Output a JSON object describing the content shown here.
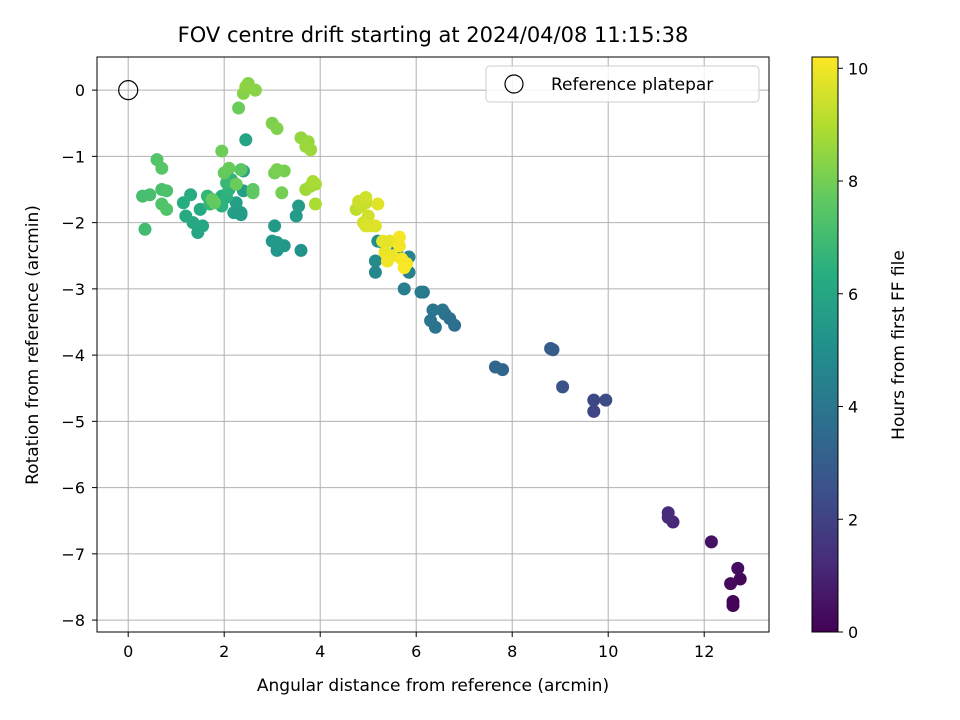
{
  "chart_data": {
    "type": "scatter",
    "title": "FOV centre drift starting at 2024/04/08 11:15:38",
    "xlabel": "Angular distance from reference (arcmin)",
    "ylabel": "Rotation from reference (arcmin)",
    "colorbar_label": "Hours from first FF file",
    "xlim": [
      -0.65,
      13.35
    ],
    "ylim": [
      -8.18,
      0.5
    ],
    "xticks": [
      0,
      2,
      4,
      6,
      8,
      10,
      12
    ],
    "yticks": [
      0,
      -1,
      -2,
      -3,
      -4,
      -5,
      -6,
      -7,
      -8
    ],
    "colorbar_range": [
      0,
      10.2
    ],
    "colorbar_ticks": [
      0,
      2,
      4,
      6,
      8,
      10
    ],
    "colormap": "viridis",
    "grid": true,
    "legend": {
      "placement": "top-right",
      "entries": [
        "Reference platepar"
      ]
    },
    "reference_point": {
      "name": "Reference platepar",
      "x": 0,
      "y": 0
    },
    "series": [
      {
        "points": [
          {
            "x": 12.75,
            "y": -7.38,
            "t": 0.2
          },
          {
            "x": 12.6,
            "y": -7.72,
            "t": 0.1
          },
          {
            "x": 12.6,
            "y": -7.78,
            "t": 0.1
          },
          {
            "x": 12.55,
            "y": -7.45,
            "t": 0.25
          },
          {
            "x": 12.7,
            "y": -7.22,
            "t": 0.35
          },
          {
            "x": 12.15,
            "y": -6.82,
            "t": 0.45
          },
          {
            "x": 11.35,
            "y": -6.52,
            "t": 1.1
          },
          {
            "x": 11.25,
            "y": -6.38,
            "t": 1.2
          },
          {
            "x": 11.25,
            "y": -6.45,
            "t": 1.25
          },
          {
            "x": 9.7,
            "y": -4.85,
            "t": 2.1
          },
          {
            "x": 9.7,
            "y": -4.68,
            "t": 2.2
          },
          {
            "x": 9.95,
            "y": -4.68,
            "t": 2.3
          },
          {
            "x": 9.05,
            "y": -4.48,
            "t": 2.5
          },
          {
            "x": 8.8,
            "y": -3.9,
            "t": 2.9
          },
          {
            "x": 8.85,
            "y": -3.92,
            "t": 2.95
          },
          {
            "x": 7.8,
            "y": -4.22,
            "t": 3.3
          },
          {
            "x": 7.65,
            "y": -4.18,
            "t": 3.4
          },
          {
            "x": 6.8,
            "y": -3.55,
            "t": 3.7
          },
          {
            "x": 6.7,
            "y": -3.45,
            "t": 3.75
          },
          {
            "x": 6.6,
            "y": -3.38,
            "t": 3.8
          },
          {
            "x": 6.55,
            "y": -3.32,
            "t": 3.85
          },
          {
            "x": 6.4,
            "y": -3.58,
            "t": 3.9
          },
          {
            "x": 6.3,
            "y": -3.48,
            "t": 3.95
          },
          {
            "x": 6.35,
            "y": -3.32,
            "t": 4.0
          },
          {
            "x": 6.15,
            "y": -3.05,
            "t": 4.1
          },
          {
            "x": 6.1,
            "y": -3.05,
            "t": 4.15
          },
          {
            "x": 5.75,
            "y": -3.0,
            "t": 4.3
          },
          {
            "x": 5.85,
            "y": -2.75,
            "t": 4.45
          },
          {
            "x": 5.85,
            "y": -2.52,
            "t": 4.55
          },
          {
            "x": 5.6,
            "y": -2.42,
            "t": 4.65
          },
          {
            "x": 5.15,
            "y": -2.75,
            "t": 4.7
          },
          {
            "x": 5.15,
            "y": -2.58,
            "t": 4.8
          },
          {
            "x": 5.2,
            "y": -2.28,
            "t": 4.9
          },
          {
            "x": 5.3,
            "y": -2.3,
            "t": 5.0
          },
          {
            "x": 3.6,
            "y": -2.42,
            "t": 5.2
          },
          {
            "x": 3.1,
            "y": -2.42,
            "t": 5.3
          },
          {
            "x": 3.25,
            "y": -2.35,
            "t": 5.35
          },
          {
            "x": 3.0,
            "y": -2.28,
            "t": 5.4
          },
          {
            "x": 3.1,
            "y": -2.3,
            "t": 5.45
          },
          {
            "x": 3.05,
            "y": -2.05,
            "t": 5.5
          },
          {
            "x": 3.5,
            "y": -1.9,
            "t": 5.55
          },
          {
            "x": 3.55,
            "y": -1.75,
            "t": 5.6
          },
          {
            "x": 2.35,
            "y": -1.88,
            "t": 5.6
          },
          {
            "x": 2.2,
            "y": -1.85,
            "t": 5.65
          },
          {
            "x": 2.35,
            "y": -1.85,
            "t": 5.65
          },
          {
            "x": 2.4,
            "y": -1.52,
            "t": 5.7
          },
          {
            "x": 2.25,
            "y": -1.7,
            "t": 5.75
          },
          {
            "x": 2.4,
            "y": -1.22,
            "t": 5.8
          },
          {
            "x": 2.45,
            "y": -0.75,
            "t": 5.9
          },
          {
            "x": 1.45,
            "y": -2.15,
            "t": 6.0
          },
          {
            "x": 1.55,
            "y": -2.05,
            "t": 6.05
          },
          {
            "x": 1.35,
            "y": -2.0,
            "t": 6.1
          },
          {
            "x": 1.5,
            "y": -1.8,
            "t": 6.15
          },
          {
            "x": 1.2,
            "y": -1.9,
            "t": 6.2
          },
          {
            "x": 1.3,
            "y": -1.58,
            "t": 6.3
          },
          {
            "x": 1.15,
            "y": -1.7,
            "t": 6.35
          },
          {
            "x": 1.95,
            "y": -1.6,
            "t": 6.4
          },
          {
            "x": 2.05,
            "y": -1.62,
            "t": 6.45
          },
          {
            "x": 1.95,
            "y": -1.75,
            "t": 6.5
          },
          {
            "x": 2.1,
            "y": -1.5,
            "t": 6.55
          },
          {
            "x": 2.15,
            "y": -1.35,
            "t": 6.6
          },
          {
            "x": 1.65,
            "y": -1.6,
            "t": 6.7
          },
          {
            "x": 1.7,
            "y": -1.72,
            "t": 6.75
          },
          {
            "x": 2.05,
            "y": -1.4,
            "t": 6.8
          },
          {
            "x": 0.35,
            "y": -2.1,
            "t": 7.0
          },
          {
            "x": 0.3,
            "y": -1.6,
            "t": 7.1
          },
          {
            "x": 0.45,
            "y": -1.58,
            "t": 7.15
          },
          {
            "x": 0.7,
            "y": -1.5,
            "t": 7.2
          },
          {
            "x": 0.8,
            "y": -1.52,
            "t": 7.25
          },
          {
            "x": 0.7,
            "y": -1.72,
            "t": 7.3
          },
          {
            "x": 0.8,
            "y": -1.8,
            "t": 7.35
          },
          {
            "x": 0.6,
            "y": -1.05,
            "t": 7.4
          },
          {
            "x": 0.7,
            "y": -1.18,
            "t": 7.45
          },
          {
            "x": 2.35,
            "y": -1.2,
            "t": 7.55
          },
          {
            "x": 2.6,
            "y": -1.5,
            "t": 7.6
          },
          {
            "x": 2.6,
            "y": -1.55,
            "t": 7.65
          },
          {
            "x": 1.75,
            "y": -1.65,
            "t": 7.7
          },
          {
            "x": 1.8,
            "y": -1.7,
            "t": 7.72
          },
          {
            "x": 2.0,
            "y": -1.25,
            "t": 7.75
          },
          {
            "x": 2.1,
            "y": -1.18,
            "t": 7.8
          },
          {
            "x": 2.25,
            "y": -1.42,
            "t": 7.82
          },
          {
            "x": 2.3,
            "y": -0.27,
            "t": 7.85
          },
          {
            "x": 1.95,
            "y": -0.92,
            "t": 7.9
          },
          {
            "x": 3.05,
            "y": -1.25,
            "t": 7.95
          },
          {
            "x": 3.2,
            "y": -1.55,
            "t": 8.0
          },
          {
            "x": 3.25,
            "y": -1.22,
            "t": 8.05
          },
          {
            "x": 3.1,
            "y": -1.2,
            "t": 8.1
          },
          {
            "x": 3.0,
            "y": -0.5,
            "t": 8.15
          },
          {
            "x": 3.1,
            "y": -0.58,
            "t": 8.2
          },
          {
            "x": 2.4,
            "y": -0.05,
            "t": 8.25
          },
          {
            "x": 2.5,
            "y": 0.1,
            "t": 8.3
          },
          {
            "x": 2.65,
            "y": 0.0,
            "t": 8.35
          },
          {
            "x": 2.45,
            "y": 0.05,
            "t": 8.4
          },
          {
            "x": 3.6,
            "y": -0.72,
            "t": 8.5
          },
          {
            "x": 3.75,
            "y": -0.78,
            "t": 8.55
          },
          {
            "x": 3.7,
            "y": -0.85,
            "t": 8.6
          },
          {
            "x": 3.8,
            "y": -0.9,
            "t": 8.65
          },
          {
            "x": 3.7,
            "y": -1.5,
            "t": 8.7
          },
          {
            "x": 3.8,
            "y": -1.45,
            "t": 8.75
          },
          {
            "x": 3.9,
            "y": -1.42,
            "t": 8.8
          },
          {
            "x": 3.85,
            "y": -1.38,
            "t": 8.85
          },
          {
            "x": 3.9,
            "y": -1.72,
            "t": 8.9
          },
          {
            "x": 4.75,
            "y": -1.8,
            "t": 9.2
          },
          {
            "x": 4.85,
            "y": -1.75,
            "t": 9.3
          },
          {
            "x": 4.95,
            "y": -1.7,
            "t": 9.35
          },
          {
            "x": 4.8,
            "y": -1.68,
            "t": 9.4
          },
          {
            "x": 4.95,
            "y": -1.62,
            "t": 9.45
          },
          {
            "x": 5.0,
            "y": -1.9,
            "t": 9.5
          },
          {
            "x": 4.9,
            "y": -2.0,
            "t": 9.55
          },
          {
            "x": 4.95,
            "y": -2.05,
            "t": 9.6
          },
          {
            "x": 5.05,
            "y": -2.05,
            "t": 9.65
          },
          {
            "x": 5.15,
            "y": -2.05,
            "t": 9.7
          },
          {
            "x": 5.2,
            "y": -1.72,
            "t": 9.75
          },
          {
            "x": 5.3,
            "y": -2.28,
            "t": 9.8
          },
          {
            "x": 5.45,
            "y": -2.28,
            "t": 9.85
          },
          {
            "x": 5.35,
            "y": -2.45,
            "t": 9.9
          },
          {
            "x": 5.5,
            "y": -2.5,
            "t": 9.95
          },
          {
            "x": 5.4,
            "y": -2.58,
            "t": 10.0
          },
          {
            "x": 5.65,
            "y": -2.22,
            "t": 10.05
          },
          {
            "x": 5.65,
            "y": -2.35,
            "t": 10.05
          },
          {
            "x": 5.7,
            "y": -2.55,
            "t": 10.1
          },
          {
            "x": 5.8,
            "y": -2.62,
            "t": 10.1
          },
          {
            "x": 5.75,
            "y": -2.68,
            "t": 10.15
          }
        ]
      }
    ]
  }
}
